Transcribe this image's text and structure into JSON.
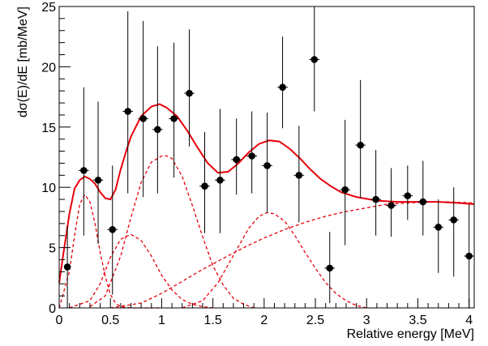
{
  "chart_data": {
    "type": "scatter",
    "title": "",
    "xlabel": "Relative energy [MeV]",
    "ylabel": "dσ(E)/dE [mb/MeV]",
    "xlim": [
      0,
      4.05
    ],
    "ylim": [
      0,
      25
    ],
    "x_ticks": [
      "0",
      "0.5",
      "1",
      "1.5",
      "2",
      "2.5",
      "3",
      "3.5",
      "4"
    ],
    "y_ticks": [
      "0",
      "5",
      "10",
      "15",
      "20",
      "25"
    ],
    "grid": false,
    "legend": "none",
    "colors": {
      "data": "#000000",
      "fit": "#e8000b"
    },
    "points": [
      {
        "x": 0.08,
        "y": 3.4,
        "yerr_up": 3.4,
        "yerr_down": 3.4,
        "xerr": 0.03
      },
      {
        "x": 0.24,
        "y": 11.4,
        "yerr_up": 6.9,
        "yerr_down": 5.4,
        "xerr": 0.05
      },
      {
        "x": 0.38,
        "y": 10.6,
        "yerr_up": 6.5,
        "yerr_down": 5.3,
        "xerr": 0.05
      },
      {
        "x": 0.52,
        "y": 6.5,
        "yerr_up": 5.3,
        "yerr_down": 5.4,
        "xerr": 0.05
      },
      {
        "x": 0.67,
        "y": 16.3,
        "yerr_up": 8.3,
        "yerr_down": 6.8,
        "xerr": 0.05
      },
      {
        "x": 0.82,
        "y": 15.7,
        "yerr_up": 8.1,
        "yerr_down": 6.5,
        "xerr": 0.05
      },
      {
        "x": 0.96,
        "y": 14.8,
        "yerr_up": 6.9,
        "yerr_down": 5.3,
        "xerr": 0.05
      },
      {
        "x": 1.12,
        "y": 15.7,
        "yerr_up": 6.3,
        "yerr_down": 4.9,
        "xerr": 0.05
      },
      {
        "x": 1.27,
        "y": 17.8,
        "yerr_up": 5.3,
        "yerr_down": 4.4,
        "xerr": 0.05
      },
      {
        "x": 1.42,
        "y": 10.1,
        "yerr_up": 4.5,
        "yerr_down": 3.9,
        "xerr": 0.05
      },
      {
        "x": 1.57,
        "y": 10.6,
        "yerr_up": 5.9,
        "yerr_down": 4.4,
        "xerr": 0.05
      },
      {
        "x": 1.73,
        "y": 12.3,
        "yerr_up": 3.4,
        "yerr_down": 2.9,
        "xerr": 0.05
      },
      {
        "x": 1.88,
        "y": 12.6,
        "yerr_up": 3.7,
        "yerr_down": 3.1,
        "xerr": 0.05
      },
      {
        "x": 2.03,
        "y": 11.8,
        "yerr_up": 4.4,
        "yerr_down": 3.9,
        "xerr": 0.05
      },
      {
        "x": 2.18,
        "y": 18.3,
        "yerr_up": 4.2,
        "yerr_down": 3.4,
        "xerr": 0.05
      },
      {
        "x": 2.34,
        "y": 11.0,
        "yerr_up": 4.1,
        "yerr_down": 3.9,
        "xerr": 0.05
      },
      {
        "x": 2.49,
        "y": 20.6,
        "yerr_up": 4.4,
        "yerr_down": 4.3,
        "xerr": 0.05
      },
      {
        "x": 2.64,
        "y": 3.3,
        "yerr_up": 3.0,
        "yerr_down": 2.9,
        "xerr": 0.05
      },
      {
        "x": 2.79,
        "y": 9.8,
        "yerr_up": 5.8,
        "yerr_down": 4.6,
        "xerr": 0.05
      },
      {
        "x": 2.94,
        "y": 13.5,
        "yerr_up": 5.4,
        "yerr_down": 4.4,
        "xerr": 0.05
      },
      {
        "x": 3.09,
        "y": 9.0,
        "yerr_up": 4.1,
        "yerr_down": 3.0,
        "xerr": 0.05
      },
      {
        "x": 3.24,
        "y": 8.5,
        "yerr_up": 3.1,
        "yerr_down": 2.6,
        "xerr": 0.05
      },
      {
        "x": 3.4,
        "y": 9.3,
        "yerr_up": 2.5,
        "yerr_down": 2.0,
        "xerr": 0.05
      },
      {
        "x": 3.55,
        "y": 8.8,
        "yerr_up": 3.4,
        "yerr_down": 2.8,
        "xerr": 0.05
      },
      {
        "x": 3.7,
        "y": 6.7,
        "yerr_up": 2.3,
        "yerr_down": 3.8,
        "xerr": 0.05
      },
      {
        "x": 3.85,
        "y": 7.3,
        "yerr_up": 2.7,
        "yerr_down": 4.7,
        "xerr": 0.05
      },
      {
        "x": 4.0,
        "y": 4.3,
        "yerr_up": 4.3,
        "yerr_down": 4.3,
        "xerr": 0.05
      }
    ],
    "curves": [
      {
        "style": "solid",
        "x": [
          0.0,
          0.05,
          0.1,
          0.15,
          0.2,
          0.25,
          0.3,
          0.35,
          0.4,
          0.45,
          0.5,
          0.55,
          0.6,
          0.65,
          0.7,
          0.8,
          0.9,
          0.98,
          1.05,
          1.15,
          1.25,
          1.35,
          1.45,
          1.55,
          1.65,
          1.75,
          1.85,
          1.95,
          2.05,
          2.15,
          2.25,
          2.35,
          2.45,
          2.55,
          2.65,
          2.75,
          2.9,
          3.1,
          3.3,
          3.5,
          3.7,
          3.9,
          4.05
        ],
        "y": [
          2.1,
          5.0,
          7.8,
          9.9,
          10.6,
          10.9,
          10.7,
          10.3,
          9.6,
          9.1,
          9.0,
          9.8,
          11.5,
          12.9,
          14.2,
          15.9,
          16.7,
          16.9,
          16.6,
          15.9,
          14.7,
          13.3,
          12.0,
          11.2,
          11.3,
          12.0,
          12.9,
          13.6,
          13.9,
          13.8,
          13.2,
          12.4,
          11.5,
          10.7,
          10.1,
          9.6,
          9.2,
          8.9,
          8.8,
          8.8,
          8.8,
          8.7,
          8.6
        ]
      },
      {
        "style": "dashed",
        "x": [
          0.0,
          0.1,
          0.15,
          0.2,
          0.25,
          0.3,
          0.35,
          0.4,
          0.45,
          0.5,
          0.55,
          0.6,
          0.7,
          0.8,
          1.0
        ],
        "y": [
          0.0,
          3.0,
          6.0,
          8.6,
          9.4,
          8.8,
          7.0,
          4.6,
          2.6,
          1.1,
          0.4,
          0.1,
          0.0,
          0.0,
          0.0
        ]
      },
      {
        "style": "dashed",
        "x": [
          0.1,
          0.3,
          0.4,
          0.5,
          0.6,
          0.7,
          0.8,
          0.9,
          1.0,
          1.1,
          1.2,
          1.3,
          1.4,
          1.5
        ],
        "y": [
          0.0,
          0.6,
          2.0,
          4.2,
          5.7,
          6.1,
          5.6,
          4.3,
          2.7,
          1.5,
          0.7,
          0.3,
          0.1,
          0.0
        ]
      },
      {
        "style": "dashed",
        "x": [
          0.3,
          0.45,
          0.6,
          0.7,
          0.8,
          0.9,
          1.0,
          1.05,
          1.1,
          1.2,
          1.3,
          1.4,
          1.5,
          1.6,
          1.7,
          1.8,
          1.9
        ],
        "y": [
          0.1,
          1.0,
          4.3,
          7.5,
          10.4,
          12.1,
          12.6,
          12.6,
          12.4,
          10.9,
          8.5,
          5.9,
          3.5,
          1.9,
          0.8,
          0.3,
          0.0
        ]
      },
      {
        "style": "dashed",
        "x": [
          1.2,
          1.4,
          1.55,
          1.65,
          1.75,
          1.85,
          1.95,
          2.03,
          2.1,
          2.2,
          2.3,
          2.4,
          2.5,
          2.6,
          2.7,
          2.8,
          2.9,
          3.0
        ],
        "y": [
          0.0,
          0.6,
          2.1,
          3.6,
          5.1,
          6.6,
          7.6,
          7.9,
          7.8,
          7.2,
          6.0,
          4.6,
          3.3,
          2.1,
          1.2,
          0.6,
          0.2,
          0.0
        ]
      },
      {
        "style": "dashed",
        "x": [
          0.5,
          0.8,
          1.0,
          1.2,
          1.4,
          1.6,
          1.8,
          2.0,
          2.2,
          2.4,
          2.6,
          2.8,
          3.0,
          3.2,
          3.4,
          3.6,
          3.8,
          4.05
        ],
        "y": [
          0.0,
          0.4,
          1.2,
          2.2,
          3.2,
          4.1,
          5.0,
          5.8,
          6.5,
          7.1,
          7.6,
          8.0,
          8.3,
          8.6,
          8.7,
          8.8,
          8.8,
          8.7
        ]
      }
    ]
  }
}
